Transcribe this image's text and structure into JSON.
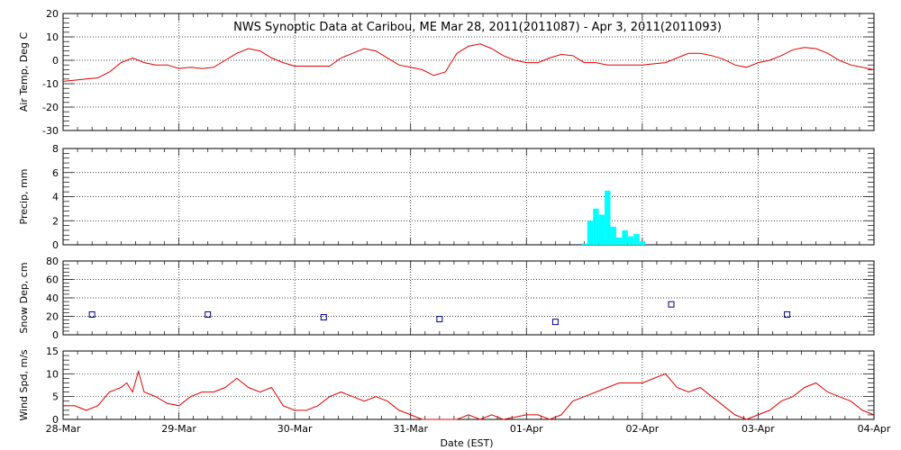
{
  "title": "NWS Synoptic Data at Caribou, ME   Mar 28, 2011(2011087) - Apr  3, 2011(2011093)",
  "xlabel": "Date (EST)",
  "x_ticks": [
    "28-Mar",
    "29-Mar",
    "30-Mar",
    "31-Mar",
    "01-Apr",
    "02-Apr",
    "03-Apr",
    "04-Apr"
  ],
  "chart_data": [
    {
      "type": "line",
      "ylabel": "Air Temp, Deg C",
      "ylim": [
        -30,
        20
      ],
      "yticks": [
        -30,
        -20,
        -10,
        0,
        10,
        20
      ],
      "grid": true,
      "color": "#e00000",
      "x": [
        0,
        0.1,
        0.2,
        0.3,
        0.4,
        0.5,
        0.6,
        0.7,
        0.8,
        0.9,
        1.0,
        1.1,
        1.2,
        1.3,
        1.4,
        1.5,
        1.6,
        1.7,
        1.8,
        1.9,
        2.0,
        2.1,
        2.2,
        2.3,
        2.4,
        2.5,
        2.6,
        2.7,
        2.8,
        2.9,
        3.0,
        3.1,
        3.2,
        3.3,
        3.4,
        3.5,
        3.6,
        3.7,
        3.8,
        3.9,
        4.0,
        4.1,
        4.2,
        4.3,
        4.4,
        4.5,
        4.6,
        4.7,
        4.8,
        4.9,
        5.0,
        5.1,
        5.2,
        5.3,
        5.4,
        5.5,
        5.6,
        5.7,
        5.8,
        5.9,
        6.0,
        6.1,
        6.2,
        6.3,
        6.4,
        6.5,
        6.6,
        6.7,
        6.8,
        6.9,
        7.0
      ],
      "y": [
        -9,
        -8.5,
        -8,
        -7.5,
        -5,
        -1,
        1,
        -1,
        -2,
        -2,
        -3.5,
        -3,
        -3.5,
        -3,
        0,
        3,
        5,
        4,
        1,
        -1,
        -2.5,
        -2.5,
        -2.5,
        -2.5,
        1,
        3,
        5,
        4,
        1,
        -2,
        -3,
        -4,
        -6.5,
        -5,
        3,
        6,
        7,
        5,
        2,
        0,
        -1,
        -1,
        1,
        2.5,
        2,
        -1,
        -1,
        -2,
        -2,
        -2,
        -2,
        -1.5,
        -1,
        1,
        3,
        3,
        2,
        0.5,
        -2,
        -3,
        -1,
        0,
        2,
        4.5,
        5.5,
        5,
        3,
        0,
        -2,
        -3,
        -4
      ]
    },
    {
      "type": "bar",
      "ylabel": "Precip, mm",
      "ylim": [
        0,
        8
      ],
      "yticks": [
        0,
        2,
        4,
        6,
        8
      ],
      "grid": true,
      "color": "#00ffff",
      "x": [
        4.5,
        4.55,
        4.6,
        4.65,
        4.7,
        4.75,
        4.8,
        4.85,
        4.9,
        4.95,
        5.0
      ],
      "values": [
        0.1,
        2,
        3,
        2.5,
        4.5,
        1.5,
        0.6,
        1.2,
        0.7,
        0.9,
        0.3
      ]
    },
    {
      "type": "scatter",
      "ylabel": "Snow Dep, cm",
      "ylim": [
        0,
        80
      ],
      "yticks": [
        0,
        20,
        40,
        60,
        80
      ],
      "grid": true,
      "color": "#000080",
      "x": [
        0.25,
        1.25,
        2.25,
        3.25,
        4.25,
        5.25,
        6.25
      ],
      "y": [
        22,
        22,
        19,
        17,
        14,
        33,
        22
      ]
    },
    {
      "type": "line",
      "ylabel": "Wind Spd, m/s",
      "ylim": [
        0,
        15
      ],
      "yticks": [
        0,
        5,
        10,
        15
      ],
      "grid": true,
      "color": "#e00000",
      "x": [
        0,
        0.1,
        0.2,
        0.3,
        0.4,
        0.5,
        0.55,
        0.6,
        0.65,
        0.7,
        0.8,
        0.9,
        1.0,
        1.1,
        1.2,
        1.3,
        1.4,
        1.5,
        1.6,
        1.7,
        1.8,
        1.9,
        2.0,
        2.1,
        2.2,
        2.3,
        2.4,
        2.5,
        2.6,
        2.7,
        2.8,
        2.9,
        3.0,
        3.1,
        3.2,
        3.3,
        3.4,
        3.5,
        3.6,
        3.7,
        3.8,
        3.9,
        4.0,
        4.1,
        4.2,
        4.3,
        4.4,
        4.5,
        4.6,
        4.7,
        4.8,
        4.9,
        5.0,
        5.1,
        5.2,
        5.3,
        5.4,
        5.5,
        5.6,
        5.7,
        5.8,
        5.9,
        6.0,
        6.1,
        6.2,
        6.3,
        6.4,
        6.5,
        6.6,
        6.7,
        6.8,
        6.9,
        7.0
      ],
      "y": [
        3,
        3,
        2,
        3,
        6,
        7,
        8,
        6,
        10.5,
        6,
        5,
        3.5,
        3,
        5,
        6,
        6,
        7,
        9,
        7,
        6,
        7,
        3,
        2,
        2,
        3,
        5,
        6,
        5,
        4,
        5,
        4,
        2,
        1,
        0,
        0,
        0,
        0,
        1,
        0,
        1,
        0,
        0.5,
        1,
        1,
        0,
        1,
        4,
        5,
        6,
        7,
        8,
        8,
        8,
        9,
        10,
        7,
        6,
        7,
        5,
        3,
        1,
        0,
        1,
        2,
        4,
        5,
        7,
        8,
        6,
        5,
        4,
        2,
        1
      ]
    }
  ]
}
